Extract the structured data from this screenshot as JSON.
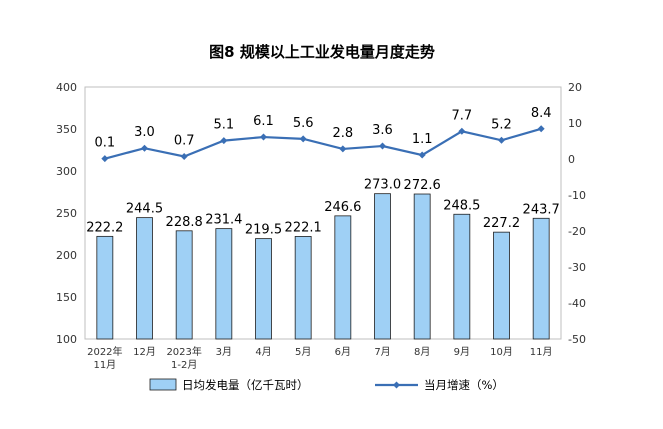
{
  "chart_data": {
    "type": "bar+line",
    "title": "图8  规模以上工业发电量月度走势",
    "categories": [
      [
        "2022年",
        "11月"
      ],
      [
        "12月"
      ],
      [
        "2023年",
        "1-2月"
      ],
      [
        "3月"
      ],
      [
        "4月"
      ],
      [
        "5月"
      ],
      [
        "6月"
      ],
      [
        "7月"
      ],
      [
        "8月"
      ],
      [
        "9月"
      ],
      [
        "10月"
      ],
      [
        "11月"
      ]
    ],
    "series": [
      {
        "name": "日均发电量（亿千瓦时）",
        "type": "bar",
        "axis": "left",
        "color": "#9fd0f5",
        "values": [
          222.2,
          244.5,
          228.8,
          231.4,
          219.5,
          222.1,
          246.6,
          273.0,
          272.6,
          248.5,
          227.2,
          243.7
        ]
      },
      {
        "name": "当月增速（%）",
        "type": "line",
        "axis": "right",
        "color": "#3a6fb5",
        "values": [
          0.1,
          3.0,
          0.7,
          5.1,
          6.1,
          5.6,
          2.8,
          3.6,
          1.1,
          7.7,
          5.2,
          8.4
        ]
      }
    ],
    "y_left": {
      "min": 100,
      "max": 400,
      "ticks": [
        100,
        150,
        200,
        250,
        300,
        350,
        400
      ]
    },
    "y_right": {
      "min": -50,
      "max": 20,
      "ticks": [
        -50,
        -40,
        -30,
        -20,
        -10,
        0,
        10,
        20
      ]
    },
    "legend": "bottom",
    "grid": false
  }
}
